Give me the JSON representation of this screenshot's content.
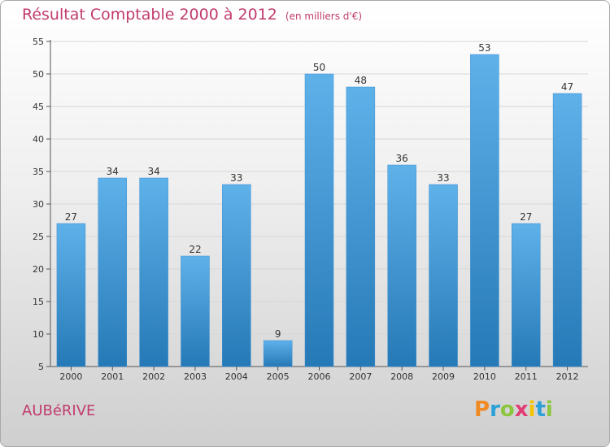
{
  "title": "Résultat Comptable 2000 à 2012",
  "subtitle": "(en milliers d'€)",
  "place_name": "AUBéRIVE",
  "logo": {
    "text": "Proxiti",
    "letters": [
      "P",
      "r",
      "o",
      "x",
      "i",
      "t",
      "i"
    ],
    "colors": [
      "#f08a24",
      "#2aa0d8",
      "#8cc63f",
      "#e23d75",
      "#f5c400",
      "#2aa0d8",
      "#8cc63f"
    ]
  },
  "colors": {
    "title": "#c23b6e",
    "bar_light": "#5fb1ea",
    "bar_dark": "#2579b6",
    "grid": "#d6d6d6"
  },
  "chart_data": {
    "type": "bar",
    "categories": [
      "2000",
      "2001",
      "2002",
      "2003",
      "2004",
      "2005",
      "2006",
      "2007",
      "2008",
      "2009",
      "2010",
      "2011",
      "2012"
    ],
    "values": [
      27,
      34,
      34,
      22,
      33,
      9,
      50,
      48,
      36,
      33,
      53,
      27,
      47
    ],
    "ylim": [
      5,
      55
    ],
    "yticks": [
      5,
      10,
      15,
      20,
      25,
      30,
      35,
      40,
      45,
      50,
      55
    ],
    "grid": true,
    "data_labels": true
  }
}
